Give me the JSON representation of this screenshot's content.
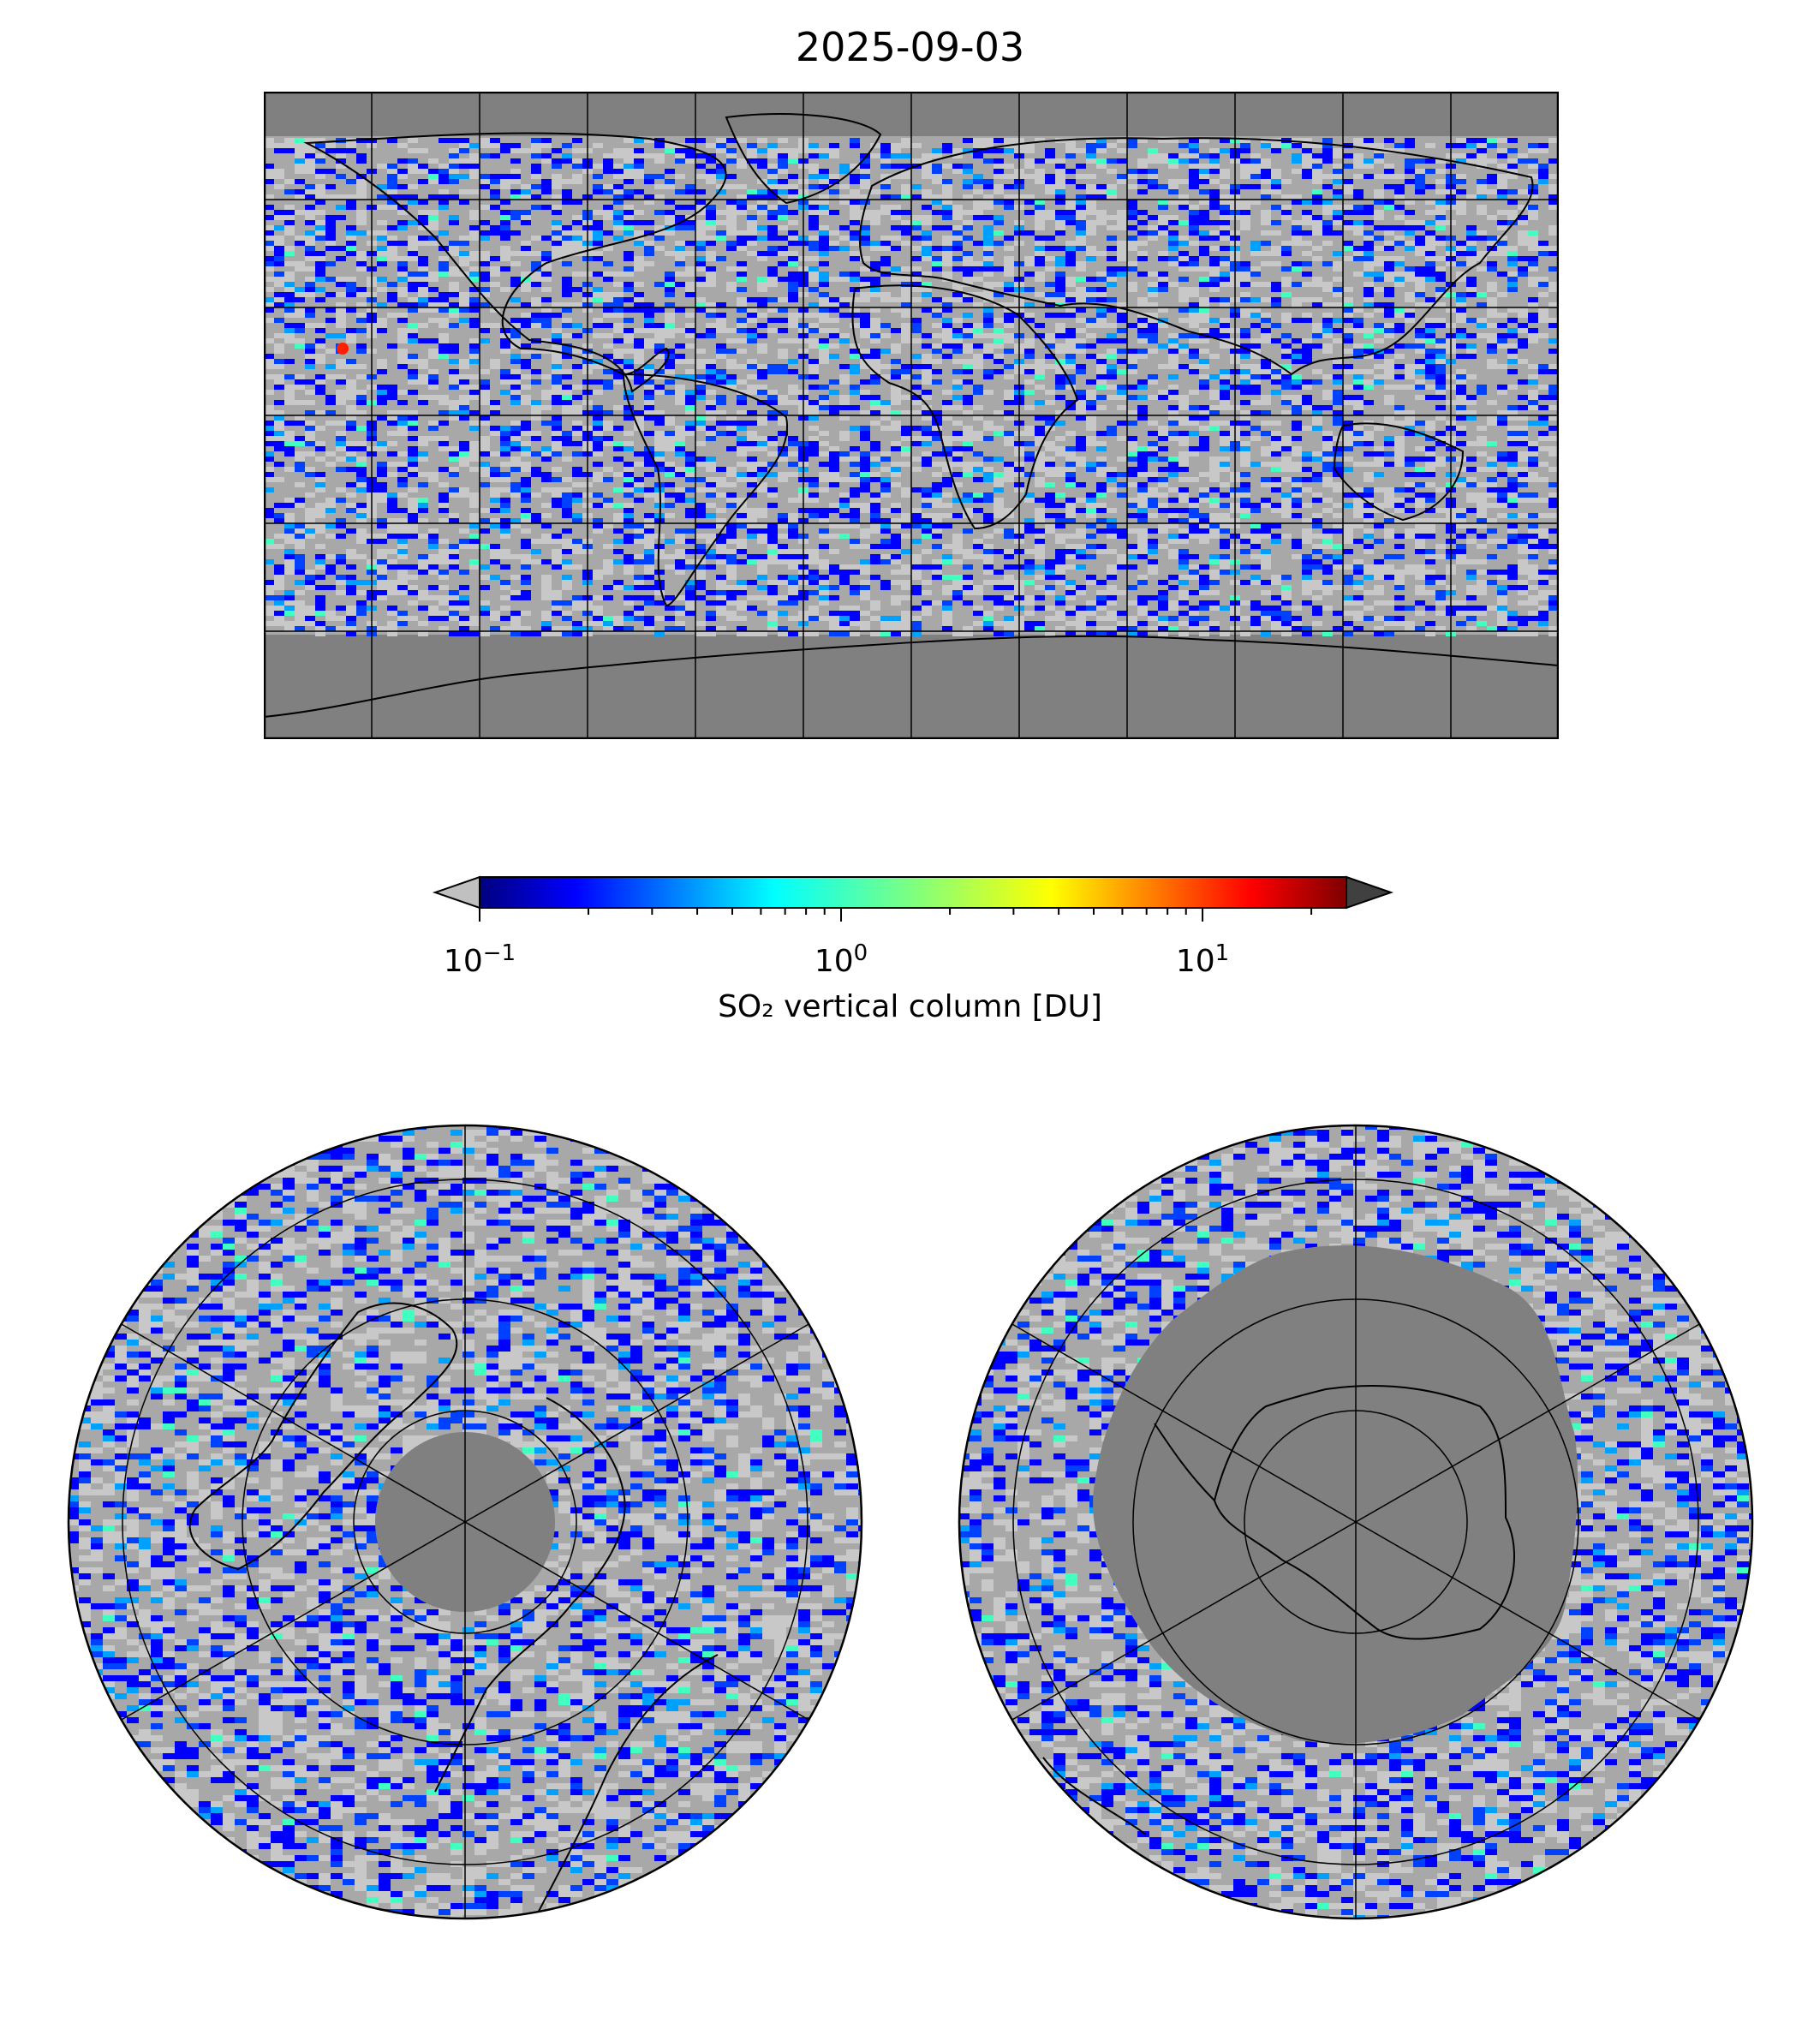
{
  "title": "2025-09-03",
  "colorbar": {
    "label": "SO₂ vertical column [DU]",
    "scale": "log",
    "range": [
      0.1,
      25
    ],
    "ticks": [
      {
        "base": "10",
        "exp": "−1",
        "value": 0.1
      },
      {
        "base": "10",
        "exp": "0",
        "value": 1
      },
      {
        "base": "10",
        "exp": "1",
        "value": 10
      }
    ],
    "colormap": [
      "#00007f",
      "#0000ff",
      "#007fff",
      "#00ffff",
      "#7fff7f",
      "#ffff00",
      "#ff7f00",
      "#ff0000",
      "#7f0000"
    ],
    "under_color": "#c0c0c0",
    "over_color": "#404040",
    "extend": "both"
  },
  "maps": {
    "global": {
      "projection": "plate carree",
      "grid": "30° lon × 30° lat",
      "no_data_color": "#808080"
    },
    "north_polar": {
      "projection": "north polar stereographic"
    },
    "south_polar": {
      "projection": "south polar stereographic"
    }
  },
  "colors": {
    "background_low": "#a8a8a8",
    "background_high": "#c8c8c8",
    "no_data": "#808080",
    "coastline": "#000000"
  }
}
